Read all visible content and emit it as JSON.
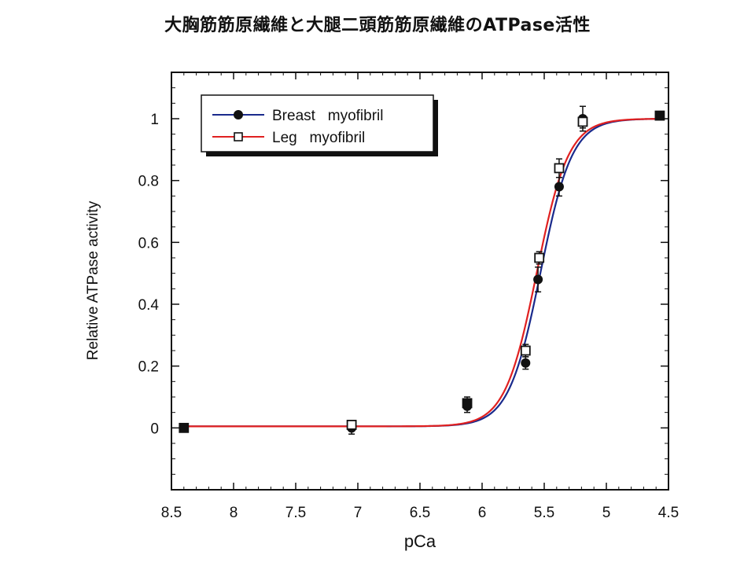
{
  "title": "大胸筋筋原繊維と大腿二頭筋筋原繊維のATPase活性",
  "chart_data": {
    "type": "scatter",
    "xlabel": "pCa",
    "ylabel": "Relative ATPase activity",
    "xlim": [
      8.5,
      4.5
    ],
    "ylim": [
      -0.2,
      1.15
    ],
    "x_reversed": true,
    "xticks": [
      "8.5",
      "8",
      "7.5",
      "7",
      "6.5",
      "6",
      "5.5",
      "5",
      "4.5"
    ],
    "yticks": [
      "0",
      "0.2",
      "0.4",
      "0.6",
      "0.8",
      "1"
    ],
    "grid": false,
    "legend_position": "top-left",
    "series": [
      {
        "name": "Breast   myofibril",
        "marker": "filled-circle",
        "color": "#1a2a8c",
        "x": [
          8.4,
          7.05,
          6.12,
          5.65,
          5.55,
          5.38,
          5.19,
          4.57
        ],
        "y": [
          0.0,
          0.0,
          0.07,
          0.21,
          0.48,
          0.78,
          1.0,
          1.01
        ],
        "err": [
          0.0,
          0.02,
          0.02,
          0.02,
          0.04,
          0.03,
          0.04,
          0.0
        ],
        "fit": {
          "pCa50": 5.53,
          "hill": 3.4,
          "baseline": 0.005
        }
      },
      {
        "name": "Leg   myofibril",
        "marker": "open-square",
        "color": "#e02020",
        "x": [
          8.4,
          7.05,
          6.12,
          5.65,
          5.54,
          5.38,
          5.19,
          4.57
        ],
        "y": [
          0.0,
          0.01,
          0.08,
          0.25,
          0.55,
          0.84,
          0.99,
          1.01
        ],
        "err": [
          0.0,
          0.0,
          0.02,
          0.02,
          0.02,
          0.03,
          0.02,
          0.0
        ],
        "fit": {
          "pCa50": 5.56,
          "hill": 3.4,
          "baseline": 0.005
        }
      }
    ]
  }
}
